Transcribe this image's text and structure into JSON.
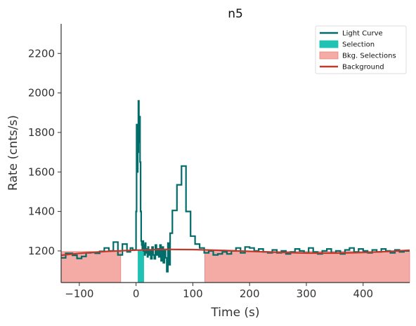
{
  "chart_data": {
    "type": "line",
    "title": "n5",
    "xlabel": "Time (s)",
    "ylabel": "Rate (cnts/s)",
    "xlim": [
      -132,
      482
    ],
    "ylim": [
      1040,
      2350
    ],
    "x_ticks": [
      -100,
      0,
      100,
      200,
      300,
      400
    ],
    "x_tick_labels": [
      "−100",
      "0",
      "100",
      "200",
      "300",
      "400"
    ],
    "y_ticks": [
      1200,
      1400,
      1600,
      1800,
      2000,
      2200
    ],
    "y_tick_labels": [
      "1200",
      "1400",
      "1600",
      "1800",
      "2000",
      "2200"
    ],
    "grid": false,
    "legend_position": "top-right",
    "colors": {
      "light_curve": "#006d6a",
      "selection": "#1fc2b3",
      "bkg_selection": "#f4aaa5",
      "bkg_selection_edge": "#e8847e",
      "background": "#c0392b"
    },
    "legend": [
      {
        "label": "Light Curve",
        "kind": "line",
        "color_key": "light_curve"
      },
      {
        "label": "Selection",
        "kind": "patch",
        "color_key": "selection"
      },
      {
        "label": "Bkg. Selections",
        "kind": "patch",
        "color_key": "bkg_selection"
      },
      {
        "label": "Background",
        "kind": "line",
        "color_key": "background"
      }
    ],
    "selection": {
      "x0": 3,
      "x1": 14
    },
    "bkg_selections": [
      {
        "x0": -132,
        "x1": -27
      },
      {
        "x0": 121,
        "x1": 482
      }
    ],
    "background_curve": {
      "x": [
        -132,
        -100,
        -50,
        0,
        50,
        100,
        150,
        200,
        250,
        300,
        350,
        400,
        450,
        482
      ],
      "y": [
        1178,
        1188,
        1198,
        1204,
        1208,
        1207,
        1203,
        1198,
        1193,
        1189,
        1189,
        1192,
        1198,
        1204
      ]
    },
    "light_curve": {
      "x": [
        -132,
        -124,
        -112,
        -104,
        -96,
        -88,
        -80,
        -72,
        -64,
        -56,
        -48,
        -40,
        -32,
        -24,
        -16,
        -10,
        -6,
        -2,
        0,
        1,
        2,
        3,
        4,
        5,
        6,
        7,
        8,
        9,
        10,
        11,
        12,
        13,
        14,
        15,
        16,
        17,
        18,
        19,
        20,
        21,
        22,
        24,
        26,
        28,
        30,
        32,
        34,
        36,
        38,
        40,
        42,
        44,
        46,
        48,
        50,
        52,
        54,
        56,
        58,
        60,
        64,
        72,
        80,
        88,
        96,
        104,
        112,
        120,
        128,
        136,
        144,
        152,
        160,
        168,
        176,
        184,
        192,
        200,
        208,
        216,
        224,
        232,
        240,
        248,
        256,
        264,
        272,
        280,
        288,
        296,
        304,
        312,
        320,
        328,
        336,
        344,
        352,
        360,
        368,
        376,
        384,
        392,
        400,
        408,
        416,
        424,
        432,
        440,
        448,
        456,
        464,
        472
      ],
      "y": [
        1165,
        1188,
        1178,
        1162,
        1172,
        1190,
        1192,
        1188,
        1198,
        1215,
        1200,
        1245,
        1180,
        1235,
        1195,
        1215,
        1205,
        1205,
        1400,
        1840,
        1600,
        1700,
        1960,
        1750,
        1880,
        1650,
        1400,
        1250,
        1230,
        1210,
        1250,
        1200,
        1230,
        1180,
        1240,
        1200,
        1190,
        1210,
        1170,
        1220,
        1180,
        1200,
        1160,
        1220,
        1180,
        1160,
        1230,
        1180,
        1210,
        1170,
        1230,
        1150,
        1220,
        1140,
        1200,
        1165,
        1095,
        1240,
        1130,
        1290,
        1405,
        1535,
        1630,
        1400,
        1275,
        1235,
        1215,
        1190,
        1200,
        1180,
        1185,
        1195,
        1185,
        1200,
        1215,
        1190,
        1220,
        1215,
        1200,
        1210,
        1195,
        1190,
        1205,
        1190,
        1200,
        1185,
        1195,
        1210,
        1200,
        1190,
        1215,
        1195,
        1185,
        1200,
        1210,
        1190,
        1200,
        1185,
        1205,
        1215,
        1195,
        1210,
        1200,
        1190,
        1205,
        1195,
        1210,
        1200,
        1190,
        1205,
        1195,
        1200
      ]
    }
  }
}
